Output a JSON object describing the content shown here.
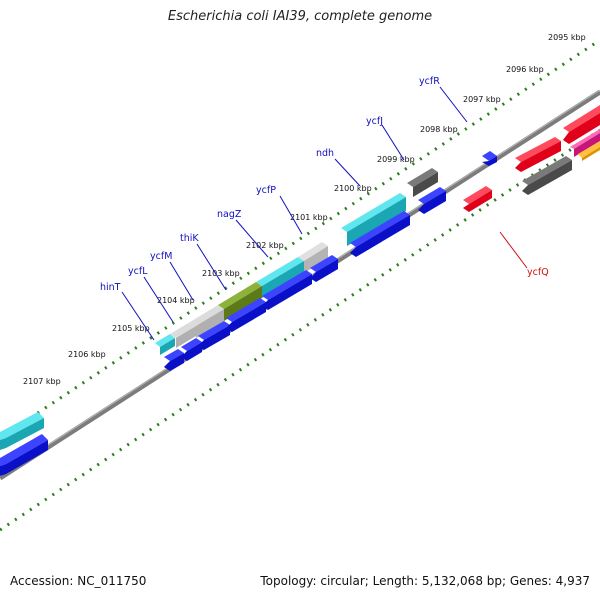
{
  "title": "Escherichia coli IAI39, complete genome",
  "footer": {
    "accession": "Accession: NC_011750",
    "stats": "Topology: circular; Length: 5,132,068 bp; Genes: 4,937"
  },
  "colors": {
    "backbone": "#808080",
    "ticks": "#2e7d1e",
    "label_blue": "#1010c0",
    "label_red": "#d01010",
    "cds": "#0a10e8",
    "rna_red": "#e8001c",
    "cyan": "#2fd3e0",
    "gray": "#c8c8c8",
    "dark_gray": "#606060",
    "olive": "#6f8f20",
    "magenta": "#e0208a",
    "orange": "#f0a000"
  },
  "scale_labels": [
    "2095 kbp",
    "2096 kbp",
    "2097 kbp",
    "2098 kbp",
    "2099 kbp",
    "2100 kbp",
    "2101 kbp",
    "2102 kbp",
    "2103 kbp",
    "2104 kbp",
    "2105 kbp",
    "2106 kbp",
    "2107 kbp"
  ],
  "gene_labels": [
    {
      "name": "ycfR",
      "color": "blue"
    },
    {
      "name": "ycfJ",
      "color": "blue"
    },
    {
      "name": "ndh",
      "color": "blue"
    },
    {
      "name": "ycfP",
      "color": "blue"
    },
    {
      "name": "nagZ",
      "color": "blue"
    },
    {
      "name": "thiK",
      "color": "blue"
    },
    {
      "name": "ycfM",
      "color": "blue"
    },
    {
      "name": "ycfL",
      "color": "blue"
    },
    {
      "name": "hinT",
      "color": "blue"
    },
    {
      "name": "ycfQ",
      "color": "red"
    }
  ]
}
